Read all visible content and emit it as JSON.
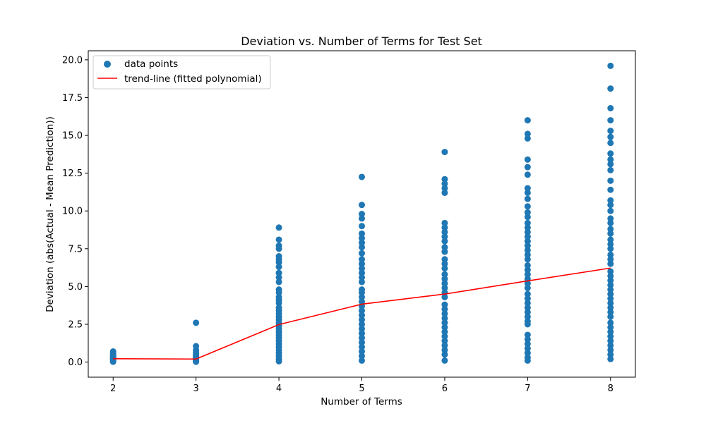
{
  "chart_data": {
    "type": "scatter",
    "title": "Deviation vs. Number of Terms for Test Set",
    "xlabel": "Number of Terms",
    "ylabel": "Deviation (abs(Actual - Mean Prediction))",
    "xlim": [
      1.7,
      8.3
    ],
    "ylim": [
      -1.0,
      20.6
    ],
    "xticks": [
      2,
      3,
      4,
      5,
      6,
      7,
      8
    ],
    "yticks": [
      0.0,
      2.5,
      5.0,
      7.5,
      10.0,
      12.5,
      15.0,
      17.5,
      20.0
    ],
    "ytick_labels": [
      "0.0",
      "2.5",
      "5.0",
      "7.5",
      "10.0",
      "12.5",
      "15.0",
      "17.5",
      "20.0"
    ],
    "grid": false,
    "legend_position": "upper-left",
    "colors": {
      "points": "#1f77b4",
      "trend": "#ff0000"
    },
    "series": [
      {
        "name": "data points",
        "kind": "scatter",
        "points": [
          [
            2,
            0.7
          ],
          [
            2,
            0.6
          ],
          [
            2,
            0.5
          ],
          [
            2,
            0.45
          ],
          [
            2,
            0.4
          ],
          [
            2,
            0.35
          ],
          [
            2,
            0.3
          ],
          [
            2,
            0.25
          ],
          [
            2,
            0.2
          ],
          [
            2,
            0.15
          ],
          [
            2,
            0.1
          ],
          [
            2,
            0.05
          ],
          [
            2,
            0.02
          ],
          [
            3,
            2.6
          ],
          [
            3,
            1.05
          ],
          [
            3,
            0.8
          ],
          [
            3,
            0.65
          ],
          [
            3,
            0.55
          ],
          [
            3,
            0.45
          ],
          [
            3,
            0.35
          ],
          [
            3,
            0.25
          ],
          [
            3,
            0.2
          ],
          [
            3,
            0.15
          ],
          [
            3,
            0.1
          ],
          [
            3,
            0.05
          ],
          [
            3,
            0.02
          ],
          [
            4,
            8.9
          ],
          [
            4,
            8.1
          ],
          [
            4,
            7.7
          ],
          [
            4,
            7.5
          ],
          [
            4,
            7.0
          ],
          [
            4,
            6.8
          ],
          [
            4,
            6.6
          ],
          [
            4,
            6.3
          ],
          [
            4,
            5.9
          ],
          [
            4,
            5.6
          ],
          [
            4,
            5.3
          ],
          [
            4,
            4.8
          ],
          [
            4,
            4.6
          ],
          [
            4,
            4.3
          ],
          [
            4,
            4.1
          ],
          [
            4,
            3.9
          ],
          [
            4,
            3.6
          ],
          [
            4,
            3.4
          ],
          [
            4,
            3.2
          ],
          [
            4,
            3.0
          ],
          [
            4,
            2.8
          ],
          [
            4,
            2.6
          ],
          [
            4,
            2.4
          ],
          [
            4,
            2.2
          ],
          [
            4,
            2.0
          ],
          [
            4,
            1.8
          ],
          [
            4,
            1.6
          ],
          [
            4,
            1.4
          ],
          [
            4,
            1.2
          ],
          [
            4,
            1.0
          ],
          [
            4,
            0.8
          ],
          [
            4,
            0.6
          ],
          [
            4,
            0.4
          ],
          [
            4,
            0.2
          ],
          [
            4,
            0.05
          ],
          [
            5,
            12.25
          ],
          [
            5,
            10.4
          ],
          [
            5,
            9.8
          ],
          [
            5,
            9.5
          ],
          [
            5,
            9.0
          ],
          [
            5,
            8.5
          ],
          [
            5,
            8.2
          ],
          [
            5,
            7.9
          ],
          [
            5,
            7.6
          ],
          [
            5,
            7.2
          ],
          [
            5,
            6.8
          ],
          [
            5,
            6.5
          ],
          [
            5,
            6.2
          ],
          [
            5,
            5.9
          ],
          [
            5,
            5.6
          ],
          [
            5,
            5.3
          ],
          [
            5,
            4.8
          ],
          [
            5,
            4.6
          ],
          [
            5,
            4.3
          ],
          [
            5,
            4.0
          ],
          [
            5,
            3.7
          ],
          [
            5,
            3.4
          ],
          [
            5,
            3.1
          ],
          [
            5,
            2.8
          ],
          [
            5,
            2.5
          ],
          [
            5,
            2.2
          ],
          [
            5,
            1.9
          ],
          [
            5,
            1.6
          ],
          [
            5,
            1.3
          ],
          [
            5,
            1.0
          ],
          [
            5,
            0.7
          ],
          [
            5,
            0.4
          ],
          [
            5,
            0.1
          ],
          [
            6,
            13.9
          ],
          [
            6,
            12.1
          ],
          [
            6,
            11.8
          ],
          [
            6,
            11.5
          ],
          [
            6,
            11.2
          ],
          [
            6,
            9.2
          ],
          [
            6,
            8.9
          ],
          [
            6,
            8.6
          ],
          [
            6,
            8.3
          ],
          [
            6,
            8.0
          ],
          [
            6,
            7.6
          ],
          [
            6,
            7.3
          ],
          [
            6,
            6.8
          ],
          [
            6,
            6.5
          ],
          [
            6,
            6.2
          ],
          [
            6,
            5.8
          ],
          [
            6,
            5.5
          ],
          [
            6,
            5.2
          ],
          [
            6,
            4.9
          ],
          [
            6,
            4.6
          ],
          [
            6,
            4.3
          ],
          [
            6,
            3.8
          ],
          [
            6,
            3.5
          ],
          [
            6,
            3.2
          ],
          [
            6,
            2.9
          ],
          [
            6,
            2.6
          ],
          [
            6,
            2.3
          ],
          [
            6,
            2.0
          ],
          [
            6,
            1.7
          ],
          [
            6,
            1.4
          ],
          [
            6,
            1.1
          ],
          [
            6,
            0.8
          ],
          [
            6,
            0.5
          ],
          [
            6,
            0.1
          ],
          [
            7,
            16.0
          ],
          [
            7,
            15.1
          ],
          [
            7,
            14.8
          ],
          [
            7,
            13.4
          ],
          [
            7,
            12.9
          ],
          [
            7,
            12.4
          ],
          [
            7,
            11.5
          ],
          [
            7,
            11.2
          ],
          [
            7,
            10.8
          ],
          [
            7,
            10.3
          ],
          [
            7,
            9.9
          ],
          [
            7,
            9.6
          ],
          [
            7,
            9.2
          ],
          [
            7,
            8.9
          ],
          [
            7,
            8.6
          ],
          [
            7,
            8.3
          ],
          [
            7,
            8.0
          ],
          [
            7,
            7.7
          ],
          [
            7,
            7.4
          ],
          [
            7,
            7.1
          ],
          [
            7,
            6.8
          ],
          [
            7,
            6.4
          ],
          [
            7,
            6.1
          ],
          [
            7,
            5.8
          ],
          [
            7,
            5.5
          ],
          [
            7,
            5.2
          ],
          [
            7,
            4.9
          ],
          [
            7,
            4.5
          ],
          [
            7,
            4.2
          ],
          [
            7,
            3.9
          ],
          [
            7,
            3.6
          ],
          [
            7,
            3.3
          ],
          [
            7,
            3.0
          ],
          [
            7,
            2.7
          ],
          [
            7,
            2.5
          ],
          [
            7,
            1.8
          ],
          [
            7,
            1.5
          ],
          [
            7,
            1.2
          ],
          [
            7,
            0.9
          ],
          [
            7,
            0.6
          ],
          [
            7,
            0.3
          ],
          [
            7,
            0.1
          ],
          [
            8,
            19.6
          ],
          [
            8,
            18.1
          ],
          [
            8,
            16.8
          ],
          [
            8,
            16.0
          ],
          [
            8,
            15.3
          ],
          [
            8,
            14.9
          ],
          [
            8,
            14.5
          ],
          [
            8,
            13.8
          ],
          [
            8,
            13.4
          ],
          [
            8,
            13.1
          ],
          [
            8,
            12.7
          ],
          [
            8,
            12.0
          ],
          [
            8,
            11.4
          ],
          [
            8,
            10.7
          ],
          [
            8,
            10.4
          ],
          [
            8,
            10.0
          ],
          [
            8,
            9.5
          ],
          [
            8,
            9.2
          ],
          [
            8,
            8.8
          ],
          [
            8,
            8.5
          ],
          [
            8,
            8.1
          ],
          [
            8,
            7.8
          ],
          [
            8,
            7.5
          ],
          [
            8,
            7.1
          ],
          [
            8,
            6.8
          ],
          [
            8,
            6.5
          ],
          [
            8,
            6.0
          ],
          [
            8,
            5.7
          ],
          [
            8,
            5.4
          ],
          [
            8,
            5.1
          ],
          [
            8,
            4.8
          ],
          [
            8,
            4.5
          ],
          [
            8,
            4.2
          ],
          [
            8,
            3.9
          ],
          [
            8,
            3.6
          ],
          [
            8,
            3.3
          ],
          [
            8,
            3.0
          ],
          [
            8,
            2.6
          ],
          [
            8,
            2.3
          ],
          [
            8,
            2.0
          ],
          [
            8,
            1.7
          ],
          [
            8,
            1.4
          ],
          [
            8,
            1.1
          ],
          [
            8,
            0.8
          ],
          [
            8,
            0.5
          ],
          [
            8,
            0.2
          ]
        ]
      },
      {
        "name": "trend-line (fitted polynomial)",
        "kind": "line",
        "x": [
          2,
          3,
          4,
          5,
          6,
          7,
          8
        ],
        "y": [
          0.22,
          0.2,
          2.48,
          3.83,
          4.5,
          5.37,
          6.22
        ]
      }
    ]
  }
}
